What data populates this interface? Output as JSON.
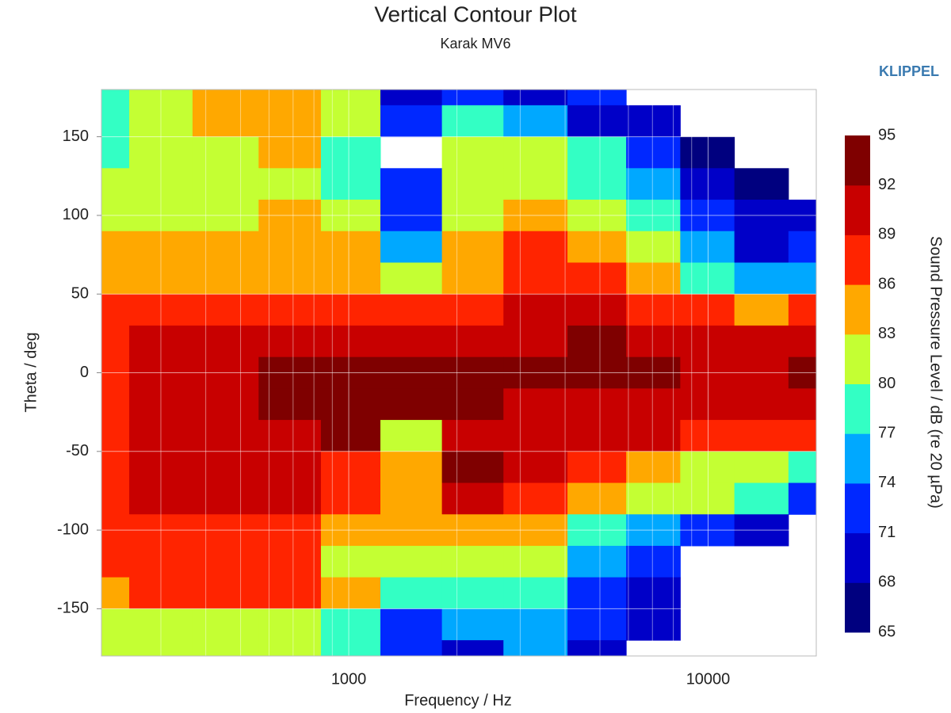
{
  "chart_data": {
    "type": "contour",
    "title": "Vertical Contour Plot",
    "subtitle": "Karak MV6",
    "brand": "KLIPPEL",
    "xlabel": "Frequency / Hz",
    "ylabel": "Theta / deg",
    "colorbar_label": "Sound Pressure Level / dB (re 20 µPa)",
    "log_x": true,
    "grid": true,
    "xlim": [
      205,
      20000
    ],
    "ylim": [
      -180,
      180
    ],
    "xticks": [
      1000,
      10000
    ],
    "x_minor_grid": [
      300,
      400,
      500,
      600,
      700,
      800,
      900,
      2000,
      3000,
      4000,
      5000,
      6000,
      7000,
      8000,
      9000
    ],
    "yticks": [
      -150,
      -100,
      -50,
      0,
      50,
      100,
      150
    ],
    "levels": [
      65,
      68,
      71,
      74,
      77,
      80,
      83,
      86,
      89,
      92,
      95
    ],
    "level_colors": [
      "#00007f",
      "#0000c8",
      "#0028ff",
      "#00a8ff",
      "#33ffc4",
      "#c4ff33",
      "#ffa800",
      "#ff2400",
      "#c80000",
      "#7f0000"
    ],
    "x": [
      200,
      300,
      450,
      700,
      1000,
      1500,
      2200,
      3300,
      5000,
      7000,
      10000,
      14000,
      20000
    ],
    "y": [
      180,
      160,
      140,
      120,
      100,
      80,
      60,
      40,
      20,
      0,
      -20,
      -40,
      -60,
      -80,
      -100,
      -120,
      -140,
      -160,
      -180
    ],
    "z": [
      [
        79,
        81,
        84,
        85,
        82,
        70,
        71,
        70,
        71,
        null,
        null,
        null,
        null
      ],
      [
        78,
        81,
        84,
        84,
        82,
        72,
        77,
        74,
        70,
        68,
        null,
        null,
        null
      ],
      [
        78,
        80,
        82,
        83,
        79,
        null,
        81,
        80,
        77,
        71,
        67,
        null,
        null
      ],
      [
        80,
        81,
        81,
        82,
        78,
        71,
        82,
        80,
        78,
        74,
        68,
        66,
        null
      ],
      [
        81,
        82,
        82,
        83,
        81,
        73,
        80,
        83,
        80,
        77,
        71,
        68,
        69
      ],
      [
        83,
        83,
        84,
        84,
        83,
        76,
        83,
        86,
        84,
        81,
        74,
        70,
        72
      ],
      [
        84,
        85,
        85,
        85,
        85,
        80,
        84,
        88,
        87,
        84,
        79,
        75,
        76
      ],
      [
        86,
        87,
        88,
        88,
        87,
        86,
        86,
        89,
        89,
        88,
        86,
        85,
        86
      ],
      [
        88,
        90,
        91,
        91,
        91,
        90,
        89,
        90,
        92,
        91,
        89,
        89,
        89
      ],
      [
        87,
        90,
        91,
        92,
        93,
        93,
        92,
        92,
        93,
        92,
        91,
        91,
        93
      ],
      [
        87,
        90,
        91,
        92,
        93,
        93,
        92,
        91,
        91,
        90,
        90,
        90,
        91
      ],
      [
        86,
        90,
        91,
        91,
        92,
        80,
        89,
        90,
        89,
        89,
        88,
        87,
        86
      ],
      [
        86,
        90,
        91,
        90,
        88,
        85,
        92,
        89,
        86,
        83,
        82,
        80,
        79
      ],
      [
        86,
        90,
        90,
        89,
        87,
        85,
        89,
        88,
        84,
        81,
        80,
        77,
        73
      ],
      [
        86,
        88,
        88,
        88,
        85,
        84,
        84,
        83,
        79,
        75,
        72,
        70,
        null
      ],
      [
        86,
        86,
        86,
        86,
        82,
        82,
        82,
        80,
        75,
        71,
        null,
        null,
        null
      ],
      [
        84,
        86,
        86,
        86,
        84,
        78,
        79,
        77,
        72,
        70,
        null,
        null,
        null
      ],
      [
        82,
        82,
        82,
        80,
        78,
        73,
        74,
        75,
        72,
        69,
        null,
        null,
        null
      ],
      [
        81,
        81,
        82,
        82,
        79,
        72,
        70,
        75,
        70,
        null,
        null,
        null,
        null
      ]
    ]
  }
}
